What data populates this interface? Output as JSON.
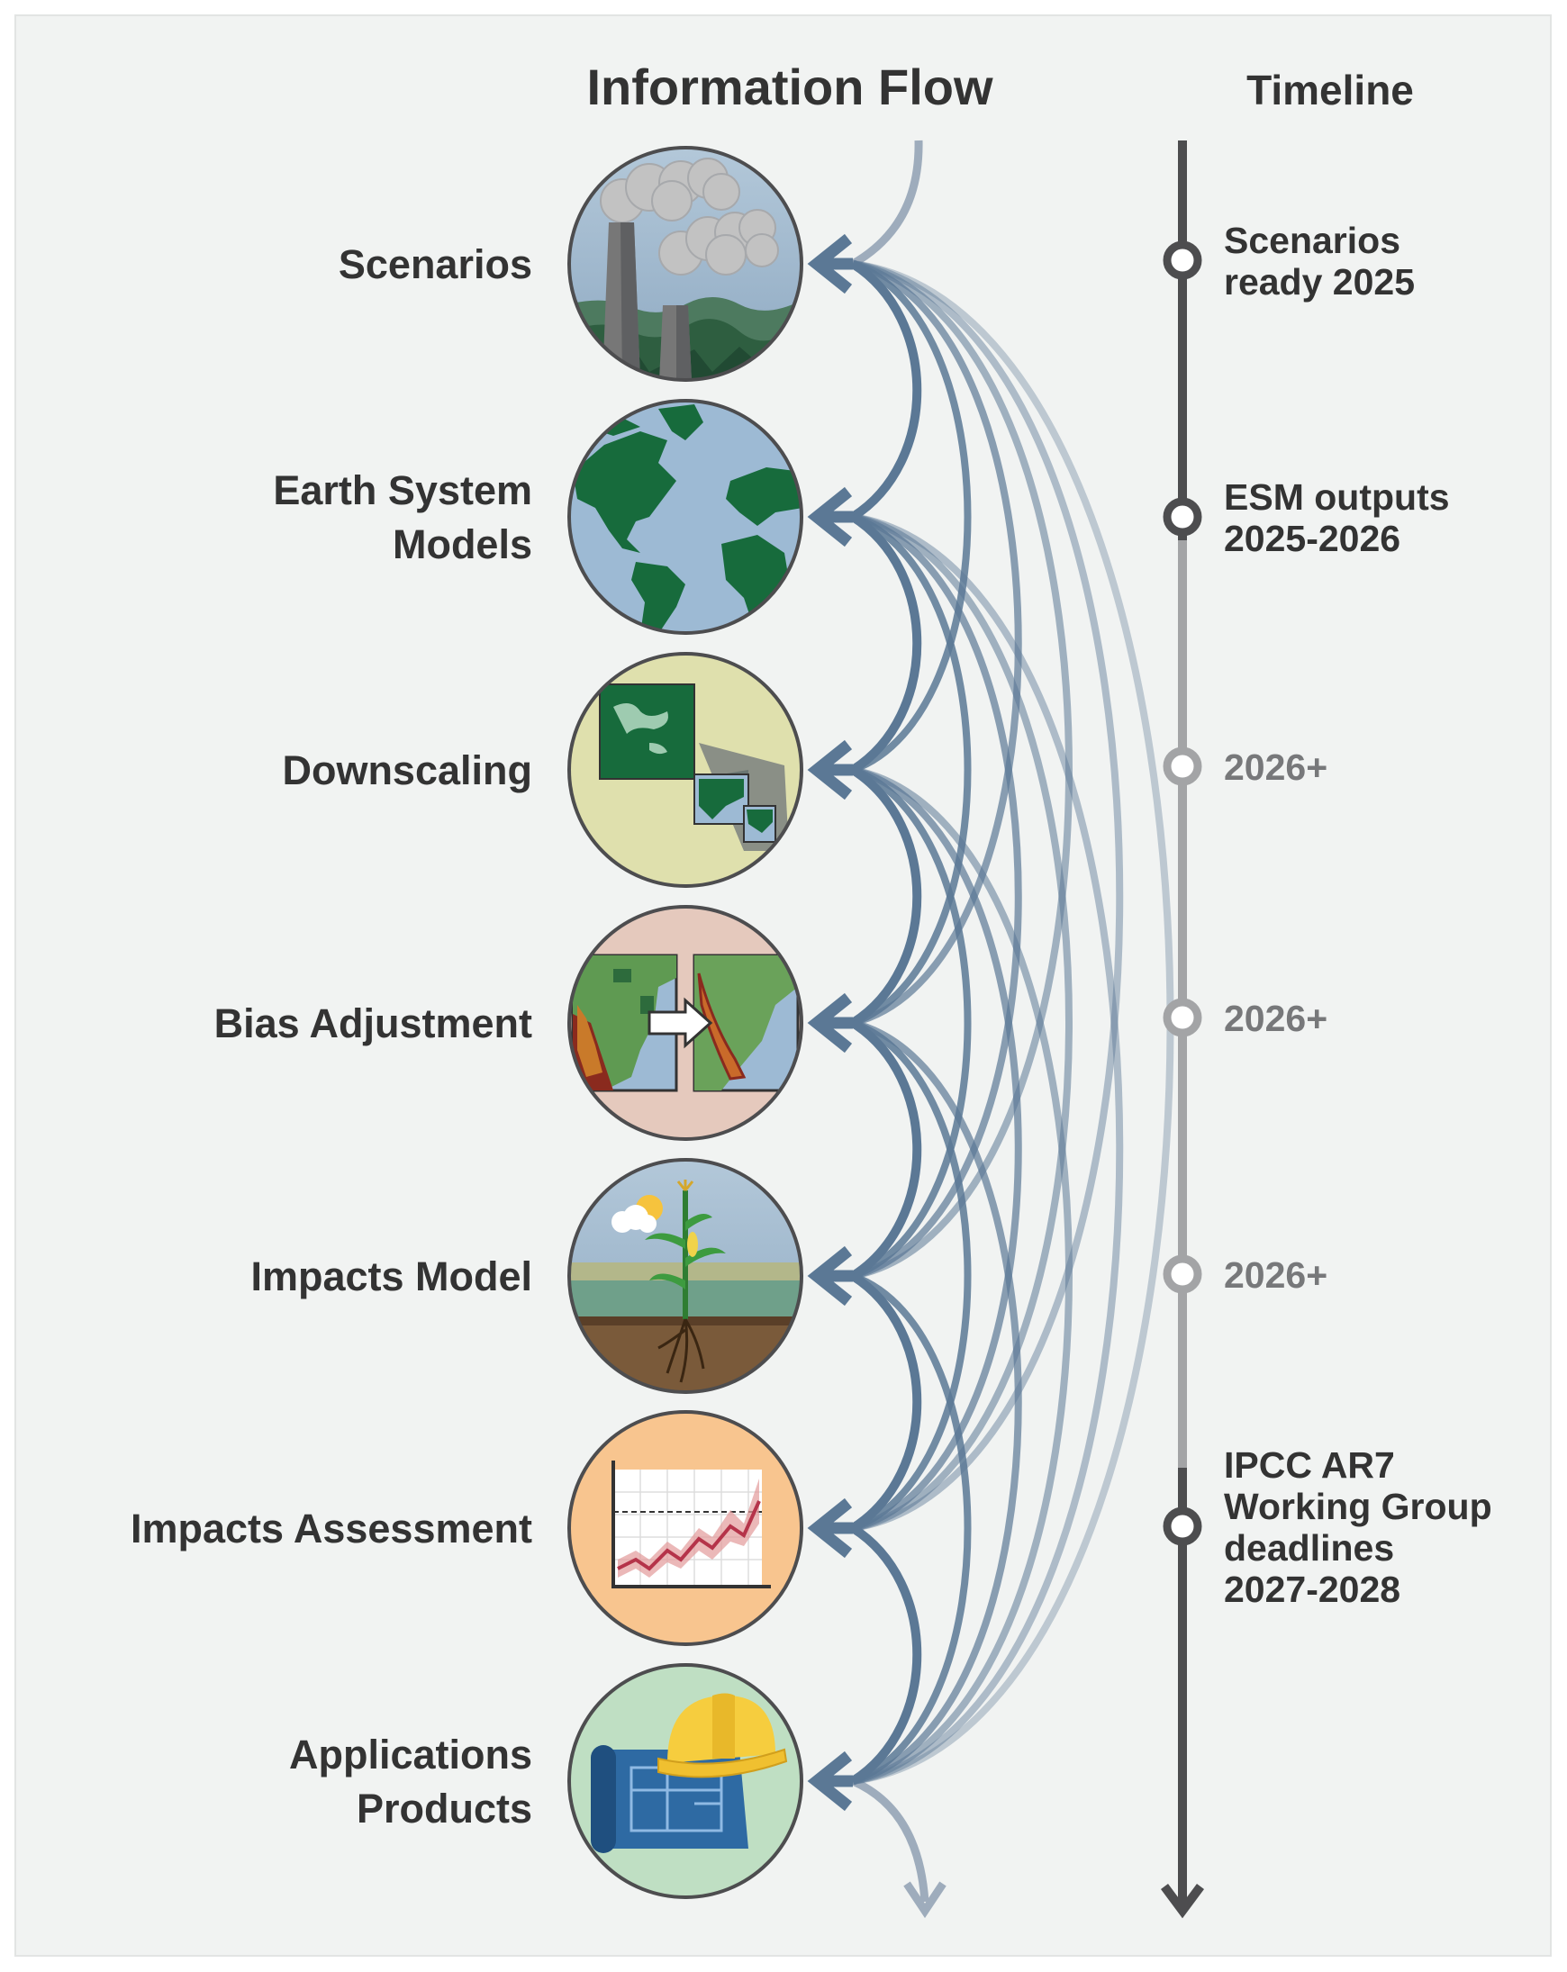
{
  "header": {
    "title": "Information Flow",
    "timeline_title": "Timeline"
  },
  "stages": [
    {
      "name": "scenarios",
      "lines": [
        "Scenarios"
      ],
      "icon": "smokestacks-icon"
    },
    {
      "name": "earth-system-models",
      "lines": [
        "Earth System",
        "Models"
      ],
      "icon": "globe-icon"
    },
    {
      "name": "downscaling",
      "lines": [
        "Downscaling"
      ],
      "icon": "zoomed-maps-icon"
    },
    {
      "name": "bias-adjustment",
      "lines": [
        "Bias Adjustment"
      ],
      "icon": "map-comparison-icon"
    },
    {
      "name": "impacts-model",
      "lines": [
        "Impacts Model"
      ],
      "icon": "corn-plant-icon"
    },
    {
      "name": "impacts-assessment",
      "lines": [
        "Impacts Assessment"
      ],
      "icon": "line-chart-icon"
    },
    {
      "name": "applications-products",
      "lines": [
        "Applications",
        "Products"
      ],
      "icon": "blueprint-hardhat-icon"
    }
  ],
  "milestones": [
    {
      "lines": [
        "Scenarios",
        "ready 2025"
      ],
      "status": "firm"
    },
    {
      "lines": [
        "ESM outputs",
        "2025-2026"
      ],
      "status": "firm"
    },
    {
      "lines": [
        "2026+"
      ],
      "status": "tentative"
    },
    {
      "lines": [
        "2026+"
      ],
      "status": "tentative"
    },
    {
      "lines": [
        "2026+"
      ],
      "status": "tentative"
    },
    {
      "lines": [
        "IPCC AR7",
        "Working Group",
        "deadlines",
        "2027-2028"
      ],
      "status": "firm"
    }
  ],
  "colors": {
    "flow_arrow": "#5b7895",
    "timeline_dark": "#4d4d4f",
    "timeline_light": "#a3a4a6",
    "text_dark": "#333333",
    "text_light": "#77787a",
    "panel": "#f1f3f2"
  }
}
